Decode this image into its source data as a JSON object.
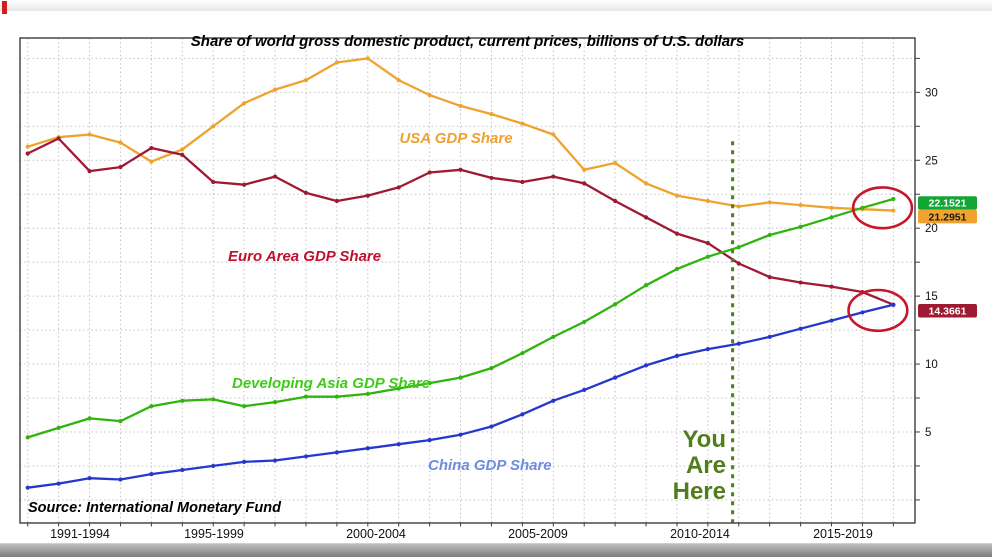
{
  "page": {
    "source": "Source: International Monetary Fund"
  },
  "annotations": {
    "you_are_here": [
      "You",
      "Are",
      "Here"
    ],
    "vline": {
      "x": 2013.8,
      "v_top": 26.4,
      "color": "#527d1b"
    },
    "highlights": [
      {
        "x": 2018.65,
        "v": 21.5,
        "rx": 0.95,
        "rv": 1.5
      },
      {
        "x": 2018.5,
        "v": 13.95,
        "rx": 0.95,
        "rv": 1.5
      }
    ],
    "highlight_color": "#c5182c",
    "end_labels": [
      {
        "text": "22.1521",
        "value": 22.1521,
        "bg": "#12a635",
        "fg": "#ffffff",
        "dy": 4
      },
      {
        "text": "21.2951",
        "value": 21.2951,
        "bg": "#f0a32f",
        "fg": "#1a1a1a",
        "dy": 6
      },
      {
        "text": "14.3661",
        "value": 14.3661,
        "bg": "#9e1a32",
        "fg": "#ffffff",
        "dy": 6
      }
    ]
  },
  "chart_data": {
    "type": "line",
    "title": "Share of world gross domestic product, current prices, billions of U.S. dollars",
    "xlabel": "",
    "ylabel": "",
    "xlim": [
      1990.75,
      2019.7
    ],
    "ylim": [
      -1.7,
      34
    ],
    "yticks_major": [
      5,
      10,
      15,
      20,
      25,
      30
    ],
    "ytick_minor_step": 2.5,
    "grid": "dotted",
    "xtick_labels": [
      "1991-1994",
      "1995-1999",
      "2000-2004",
      "2005-2009",
      "2010-2014",
      "2015-2019"
    ],
    "x": [
      1991,
      1992,
      1993,
      1994,
      1995,
      1996,
      1997,
      1998,
      1999,
      2000,
      2001,
      2002,
      2003,
      2004,
      2005,
      2006,
      2007,
      2008,
      2009,
      2010,
      2011,
      2012,
      2013,
      2014,
      2015,
      2016,
      2017,
      2018,
      2019
    ],
    "series": [
      {
        "name": "USA GDP Share",
        "color": "#efa32f",
        "values": [
          26.0,
          26.7,
          26.9,
          26.3,
          24.9,
          25.8,
          27.5,
          29.2,
          30.2,
          30.9,
          32.2,
          32.5,
          30.9,
          29.8,
          29.0,
          28.4,
          27.7,
          26.9,
          24.3,
          24.8,
          23.3,
          22.4,
          22.0,
          21.6,
          21.9,
          21.7,
          21.5,
          21.4,
          21.2951
        ]
      },
      {
        "name": "Euro Area GDP Share",
        "color": "#9e1a32",
        "values": [
          25.5,
          26.6,
          24.2,
          24.5,
          25.9,
          25.4,
          23.4,
          23.2,
          23.8,
          22.6,
          22.0,
          22.4,
          23.0,
          24.1,
          24.3,
          23.7,
          23.4,
          23.8,
          23.3,
          22.0,
          20.8,
          19.6,
          18.9,
          17.4,
          16.4,
          16.0,
          15.7,
          15.3,
          14.3661
        ]
      },
      {
        "name": "Developing Asia GDP Share",
        "color": "#30b40e",
        "values": [
          4.6,
          5.3,
          6.0,
          5.8,
          6.9,
          7.3,
          7.4,
          6.9,
          7.2,
          7.6,
          7.6,
          7.8,
          8.2,
          8.6,
          9.0,
          9.7,
          10.8,
          12.0,
          13.1,
          14.4,
          15.8,
          17.0,
          17.9,
          18.6,
          19.5,
          20.1,
          20.8,
          21.5,
          22.1521
        ]
      },
      {
        "name": "China GDP Share",
        "color": "#2538cb",
        "values": [
          0.9,
          1.2,
          1.6,
          1.5,
          1.9,
          2.2,
          2.5,
          2.8,
          2.9,
          3.2,
          3.5,
          3.8,
          4.1,
          4.4,
          4.8,
          5.4,
          6.3,
          7.3,
          8.1,
          9.0,
          9.9,
          10.6,
          11.1,
          11.5,
          12.0,
          12.6,
          13.2,
          13.8,
          14.3661
        ]
      }
    ]
  }
}
